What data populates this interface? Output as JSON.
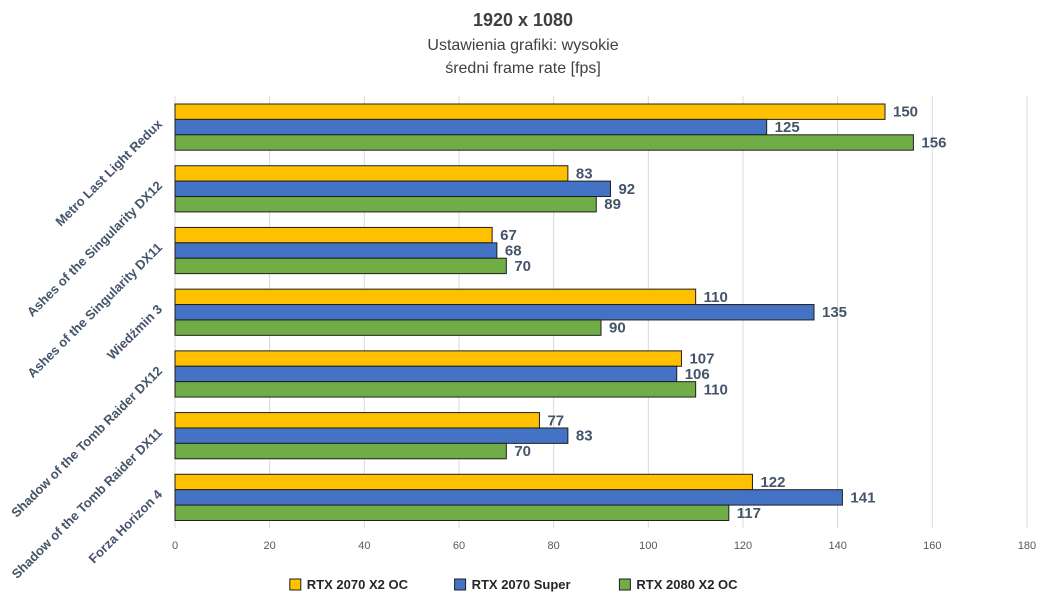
{
  "chart_data": {
    "type": "bar",
    "orientation": "horizontal",
    "title": "1920 x 1080",
    "subtitle_lines": [
      "Ustawienia grafiki: wysokie",
      "średni frame rate [fps]"
    ],
    "categories": [
      "Metro Last Light Redux",
      "Ashes of the Singularity DX12",
      "Ashes of the Singularity DX11",
      "Wiedźmin 3",
      "Shadow of the Tomb Raider DX12",
      "Shadow of the Tomb Raider DX11",
      "Forza Horizon 4"
    ],
    "series": [
      {
        "name": "RTX 2070 X2 OC",
        "color": "#ffc000",
        "values": [
          150,
          83,
          67,
          110,
          107,
          77,
          122
        ]
      },
      {
        "name": "RTX 2070 Super",
        "color": "#4472c4",
        "values": [
          125,
          92,
          68,
          135,
          106,
          83,
          141
        ]
      },
      {
        "name": "RTX 2080 X2 OC",
        "color": "#70ad47",
        "values": [
          156,
          89,
          70,
          90,
          110,
          70,
          117
        ]
      }
    ],
    "xlim": [
      0,
      180
    ],
    "xticks": [
      0,
      20,
      40,
      60,
      80,
      100,
      120,
      140,
      160,
      180
    ],
    "grid": true,
    "legend_position": "bottom"
  }
}
